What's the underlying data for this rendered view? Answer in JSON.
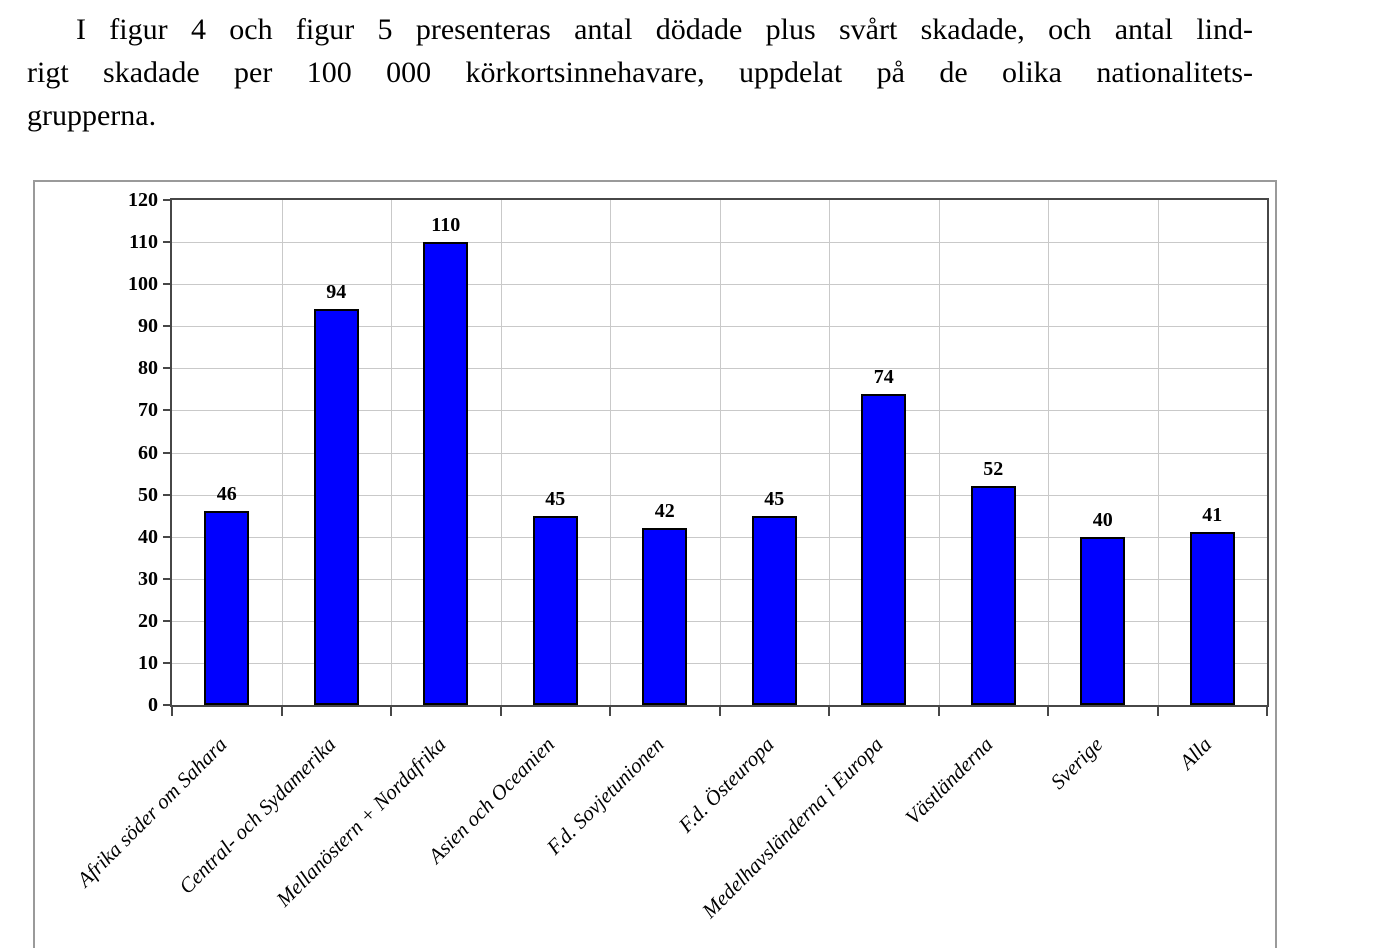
{
  "paragraph": {
    "lines": [
      "I figur 4 och figur 5 presenteras antal dödade plus svårt skadade, och antal lind-",
      "rigt skadade per 100 000 körkortsinnehavare, uppdelat på de olika nationalitets-",
      "grupperna."
    ]
  },
  "chart_data": {
    "type": "bar",
    "categories": [
      "Afrika söder om Sahara",
      "Central- och Sydamerika",
      "Mellanöstern + Nordafrika",
      "Asien och Oceanien",
      "F.d. Sovjetunionen",
      "F.d. Östeuropa",
      "Medelhavsländerna i Europa",
      "Västländerna",
      "Sverige",
      "Alla"
    ],
    "values": [
      46,
      94,
      110,
      45,
      42,
      45,
      74,
      52,
      40,
      41
    ],
    "bar_labels": [
      "46",
      "94",
      "110",
      "45",
      "42",
      "45",
      "74",
      "52",
      "40",
      "41"
    ],
    "title": "",
    "xlabel": "",
    "ylabel": "",
    "ylim": [
      0,
      120
    ],
    "yticks": [
      0,
      10,
      20,
      30,
      40,
      50,
      60,
      70,
      80,
      90,
      100,
      110,
      120
    ],
    "grid": true,
    "legend_position": "none",
    "colors": {
      "bar_fill": "#0000ff",
      "bar_border": "#000000",
      "gridline": "#c9c9c9",
      "plot_frame": "#474747",
      "figure_border": "#9a9a9a",
      "text": "#000000"
    }
  }
}
